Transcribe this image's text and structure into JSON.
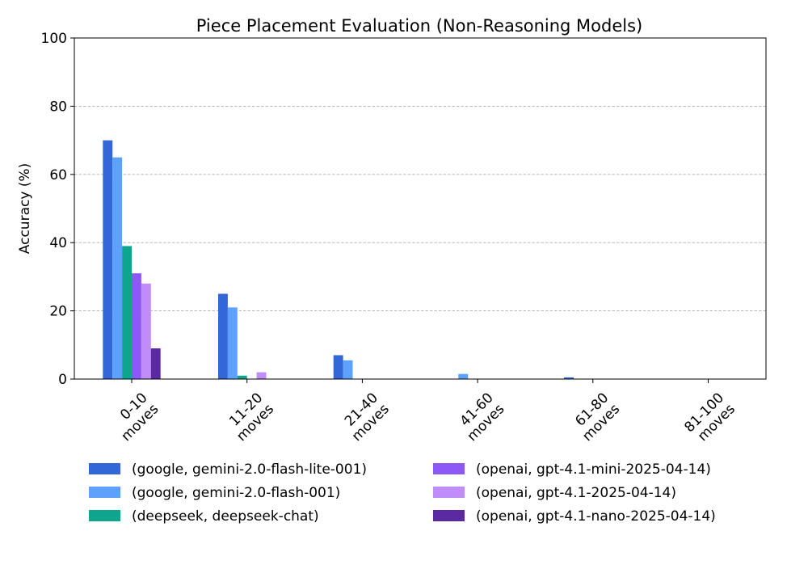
{
  "chart_data": {
    "type": "bar",
    "title": "Piece Placement Evaluation (Non-Reasoning Models)",
    "xlabel": "",
    "ylabel": "Accuracy (%)",
    "ylim": [
      0,
      100
    ],
    "yticks": [
      0,
      20,
      40,
      60,
      80,
      100
    ],
    "grid": "y-dashed",
    "legend_position": "bottom",
    "categories": [
      "0-10 moves",
      "11-20 moves",
      "21-40 moves",
      "41-60 moves",
      "61-80 moves",
      "81-100 moves"
    ],
    "category_lines": [
      [
        "0-10",
        "moves"
      ],
      [
        "11-20",
        "moves"
      ],
      [
        "21-40",
        "moves"
      ],
      [
        "41-60",
        "moves"
      ],
      [
        "61-80",
        "moves"
      ],
      [
        "81-100",
        "moves"
      ]
    ],
    "series": [
      {
        "name": "(google, gemini-2.0-flash-lite-001)",
        "color": "#3366d6",
        "values": [
          70,
          25,
          7,
          0,
          0.5,
          0
        ]
      },
      {
        "name": "(google, gemini-2.0-flash-001)",
        "color": "#5ea1fc",
        "values": [
          65,
          21,
          5.5,
          1.5,
          0,
          0
        ]
      },
      {
        "name": "(deepseek, deepseek-chat)",
        "color": "#0ea58c",
        "values": [
          39,
          1,
          0,
          0,
          0,
          0
        ]
      },
      {
        "name": "(openai, gpt-4.1-mini-2025-04-14)",
        "color": "#8c58f7",
        "values": [
          31,
          0,
          0,
          0,
          0,
          0
        ]
      },
      {
        "name": "(openai, gpt-4.1-2025-04-14)",
        "color": "#c08cfa",
        "values": [
          28,
          2,
          0,
          0,
          0,
          0
        ]
      },
      {
        "name": "(openai, gpt-4.1-nano-2025-04-14)",
        "color": "#5b2aa3",
        "values": [
          9,
          0,
          0,
          0,
          0,
          0
        ]
      }
    ]
  }
}
